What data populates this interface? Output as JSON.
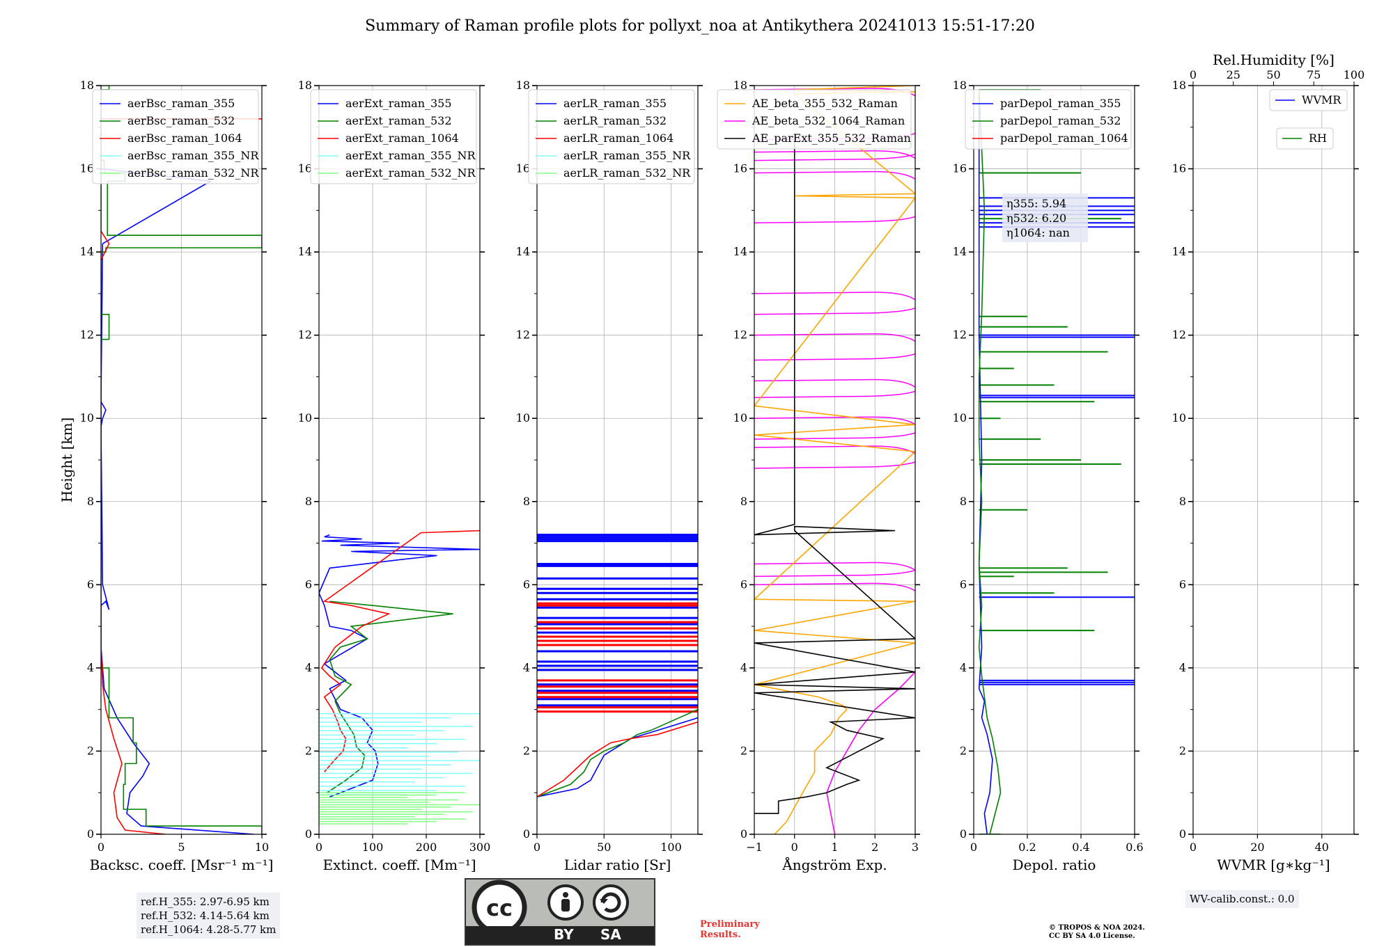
{
  "title": "Summary of Raman profile plots for pollyxt_noa at Antikythera 20241013 15:51-17:20",
  "colors": {
    "blue": "#0000ff",
    "green": "#008000",
    "red": "#ff0000",
    "cyan": "#7fffff",
    "lightgreen": "#80ff80",
    "orange": "#ffa500",
    "magenta": "#ff00ff",
    "black": "#000000",
    "grid": "#b0b0b0",
    "prelim": "#e8332e"
  },
  "notes": {
    "ref_h_355": "ref.H_355: 2.97-6.95 km",
    "ref_h_532": "ref.H_532: 4.14-5.64 km",
    "ref_h_1064": "ref.H_1064: 4.28-5.77 km",
    "wv_calib": "WV-calib.const.: 0.0",
    "eta": [
      "η355: 5.94",
      "η532: 6.20",
      "η1064: nan"
    ]
  },
  "license": {
    "cc": "cc",
    "by": "BY",
    "sa": "SA"
  },
  "preliminary": [
    "Preliminary",
    "Results."
  ],
  "copyright": [
    "© TROPOS & NOA 2024.",
    "CC BY SA 4.0 License."
  ],
  "chart_data": [
    {
      "id": "backscatter",
      "type": "line",
      "xlabel": "Backsc. coeff. [Msr⁻¹ m⁻¹]",
      "ylabel": "Height [km]",
      "xlim": [
        0,
        10
      ],
      "xticks": [
        0,
        5,
        10
      ],
      "ylim": [
        0,
        18
      ],
      "yticks": [
        0,
        2,
        4,
        6,
        8,
        10,
        12,
        14,
        16,
        18
      ],
      "grid": true,
      "legend_position": "top-left",
      "series": [
        {
          "name": "aerBsc_raman_355",
          "color": "#0000ff",
          "x": [
            9.5,
            2.5,
            1.6,
            1.8,
            2.6,
            3.0,
            2.0,
            1.0,
            0.2,
            0.0,
            0.0,
            0.0,
            0.3,
            0.5,
            0.1,
            0.0,
            0.1,
            0.3,
            0.0,
            0.1,
            6.8,
            0.0,
            0.0
          ],
          "y": [
            0.0,
            0.2,
            0.5,
            1.0,
            1.4,
            1.7,
            2.2,
            2.8,
            3.5,
            4.5,
            5.2,
            5.5,
            5.6,
            5.4,
            6.0,
            9.8,
            10.0,
            10.2,
            10.4,
            14.2,
            15.7,
            16.0,
            17.9
          ]
        },
        {
          "name": "aerBsc_raman_532",
          "color": "#008000",
          "x": [
            10,
            2.8,
            1.4,
            1.5,
            2.2,
            2.0,
            0.5,
            0.0,
            0.0,
            0.5,
            0.0,
            0.0,
            0.3,
            10,
            0.4,
            1.5,
            0.2,
            0.0,
            0.5,
            0.0
          ],
          "y": [
            0.0,
            0.2,
            0.6,
            1.2,
            1.7,
            2.2,
            2.8,
            4.0,
            11.5,
            11.9,
            12.5,
            13.6,
            14.0,
            14.1,
            14.4,
            15.7,
            15.9,
            16.2,
            17.9,
            18.0
          ],
          "style": "step"
        },
        {
          "name": "aerBsc_raman_1064",
          "color": "#ff0000",
          "x": [
            4.0,
            1.5,
            1.0,
            0.8,
            1.3,
            0.8,
            0.3,
            0.1,
            0.0,
            0.0,
            0.5,
            0.0,
            0.0,
            10
          ],
          "y": [
            0.0,
            0.1,
            0.4,
            1.0,
            1.7,
            2.3,
            3.0,
            3.6,
            4.5,
            13.8,
            14.2,
            14.5,
            17.2,
            17.2
          ]
        },
        {
          "name": "aerBsc_raman_355_NR",
          "color": "#7fffff",
          "x": [],
          "y": []
        },
        {
          "name": "aerBsc_raman_532_NR",
          "color": "#80ff80",
          "x": [],
          "y": []
        }
      ]
    },
    {
      "id": "extinction",
      "type": "line",
      "xlabel": "Extinct. coeff. [Mm⁻¹]",
      "xlim": [
        0,
        300
      ],
      "xticks": [
        0,
        100,
        200,
        300
      ],
      "ylim": [
        0,
        18
      ],
      "yticks": [
        0,
        2,
        4,
        6,
        8,
        10,
        12,
        14,
        16,
        18
      ],
      "grid": true,
      "legend_position": "top-left",
      "series": [
        {
          "name": "aerExt_raman_355",
          "color": "#0000ff",
          "x": [
            20,
            60,
            100,
            110,
            105,
            90,
            100,
            80,
            40,
            20,
            50,
            30,
            10,
            90,
            60,
            20,
            10,
            0,
            20,
            150,
            220,
            60,
            300,
            40,
            150,
            5,
            80,
            10,
            20
          ],
          "y": [
            0.9,
            1.1,
            1.3,
            1.7,
            2.0,
            2.2,
            2.5,
            2.8,
            3.0,
            3.5,
            3.7,
            3.9,
            4.1,
            4.7,
            4.9,
            5.0,
            5.5,
            5.8,
            6.4,
            6.6,
            6.7,
            6.8,
            6.85,
            6.95,
            7.0,
            7.05,
            7.1,
            7.15,
            7.2
          ]
        },
        {
          "name": "aerExt_raman_532",
          "color": "#008000",
          "x": [
            15,
            50,
            80,
            85,
            70,
            65,
            50,
            40,
            30,
            60,
            30,
            20,
            40,
            90,
            60,
            250,
            100,
            20
          ],
          "y": [
            1.0,
            1.3,
            1.6,
            1.9,
            2.1,
            2.4,
            2.7,
            2.9,
            3.2,
            3.6,
            3.8,
            4.2,
            4.5,
            4.7,
            5.0,
            5.3,
            5.5,
            5.6
          ]
        },
        {
          "name": "aerExt_raman_1064",
          "color": "#ff0000",
          "x": [
            10,
            30,
            45,
            50,
            40,
            35,
            25,
            10,
            40,
            20,
            5,
            30,
            60,
            80,
            130,
            60,
            10,
            190,
            300
          ],
          "y": [
            1.5,
            1.8,
            2.0,
            2.3,
            2.5,
            2.7,
            3.0,
            3.3,
            3.6,
            3.8,
            4.0,
            4.5,
            4.8,
            5.0,
            5.3,
            5.5,
            5.6,
            7.25,
            7.3
          ]
        },
        {
          "name": "aerExt_raman_355_NR",
          "color": "#7fffff",
          "style": "hbars",
          "y_start": 0.95,
          "y_end": 2.9,
          "count": 20,
          "x_max": 300
        },
        {
          "name": "aerExt_raman_532_NR",
          "color": "#80ff80",
          "style": "hbars",
          "y_start": 0.25,
          "y_end": 1.0,
          "count": 14,
          "x_max": 300
        }
      ]
    },
    {
      "id": "lidar_ratio",
      "type": "line",
      "xlabel": "Lidar ratio [Sr]",
      "xlim": [
        0,
        120
      ],
      "xticks": [
        0,
        50,
        100
      ],
      "ylim": [
        0,
        18
      ],
      "yticks": [
        0,
        2,
        4,
        6,
        8,
        10,
        12,
        14,
        16,
        18
      ],
      "grid": true,
      "legend_position": "top-left",
      "series": [
        {
          "name": "aerLR_raman_355",
          "color": "#0000ff",
          "x": [
            0,
            30,
            40,
            45,
            50,
            60,
            70,
            80,
            100,
            120
          ],
          "y": [
            0.9,
            1.1,
            1.3,
            1.6,
            1.9,
            2.1,
            2.3,
            2.4,
            2.6,
            2.8
          ]
        },
        {
          "name": "aerLR_raman_532",
          "color": "#008000",
          "x": [
            0,
            25,
            35,
            40,
            50,
            65,
            75,
            85,
            120
          ],
          "y": [
            0.9,
            1.2,
            1.5,
            1.8,
            2.0,
            2.2,
            2.4,
            2.5,
            3.0
          ]
        },
        {
          "name": "aerLR_raman_1064",
          "color": "#ff0000",
          "x": [
            0,
            20,
            30,
            40,
            55,
            70,
            90,
            100,
            120
          ],
          "y": [
            0.9,
            1.3,
            1.6,
            1.9,
            2.2,
            2.3,
            2.4,
            2.5,
            2.7
          ]
        },
        {
          "name": "aerLR_raman_355_NR",
          "color": "#7fffff",
          "x": [],
          "y": []
        },
        {
          "name": "aerLR_raman_532_NR",
          "color": "#80ff80",
          "x": [],
          "y": []
        }
      ],
      "hlines_355": [
        3.1,
        3.25,
        3.45,
        3.6,
        3.95,
        4.05,
        4.15,
        4.4,
        4.65,
        4.85,
        5.05,
        5.2,
        5.45,
        5.65,
        5.8,
        5.9,
        6.15,
        6.45,
        6.5,
        7.05,
        7.1,
        7.15,
        7.2
      ],
      "hlines_1064": [
        2.95,
        3.05,
        3.3,
        3.4,
        3.55,
        3.7,
        4.55,
        4.65,
        4.75,
        4.95,
        5.1,
        5.5,
        5.55
      ]
    },
    {
      "id": "angstrom",
      "type": "line",
      "xlabel": "Ångström Exp.",
      "xlim": [
        -1,
        3
      ],
      "xticks": [
        -1,
        0,
        1,
        2,
        3
      ],
      "ylim": [
        0,
        18
      ],
      "yticks": [
        0,
        2,
        4,
        6,
        8,
        10,
        12,
        14,
        16,
        18
      ],
      "grid": true,
      "legend_position": "top-left",
      "series": [
        {
          "name": "AE_beta_355_532_Raman",
          "color": "#ffa500",
          "x": [
            -0.5,
            -0.2,
            0.2,
            0.5,
            0.5,
            0.9,
            1.1,
            1.3,
            1.2,
            0.6,
            -1,
            3.0,
            -1,
            3,
            -1,
            3,
            -1,
            3,
            -1,
            3,
            0.0,
            3,
            0.0,
            3,
            0.0,
            3,
            2.5,
            3
          ],
          "y": [
            0.0,
            0.3,
            1.0,
            1.5,
            2.0,
            2.4,
            2.8,
            3.0,
            3.1,
            3.3,
            3.6,
            4.6,
            4.9,
            5.6,
            5.65,
            9.2,
            9.6,
            9.85,
            10.3,
            15.3,
            15.35,
            15.4,
            17.8,
            17.85,
            17.9,
            18.0,
            18.0,
            18.0
          ]
        },
        {
          "name": "AE_beta_532_1064_Raman",
          "color": "#ff00ff",
          "x": [
            1.0,
            0.9,
            0.8,
            1.0,
            1.3,
            1.6,
            2.0,
            2.6,
            3.0
          ],
          "y": [
            0.0,
            0.5,
            1.0,
            1.5,
            2.0,
            2.5,
            3.0,
            3.5,
            3.9
          ]
        },
        {
          "name": "AE_parExt_355_532_Raman",
          "color": "#000000",
          "x": [
            -1,
            -0.4,
            -0.4,
            0.3,
            0.8,
            1.3,
            1.6,
            0.8,
            1.2,
            1.8,
            2.2,
            1.3,
            0.9,
            3,
            -1,
            3,
            -1,
            3,
            -1,
            3,
            0.0,
            0.0,
            2.5,
            -1,
            0.0,
            0.0
          ],
          "y": [
            0.5,
            0.5,
            0.8,
            0.9,
            1.0,
            1.2,
            1.3,
            1.6,
            1.8,
            2.1,
            2.3,
            2.5,
            2.7,
            2.8,
            3.4,
            3.5,
            3.6,
            3.9,
            4.6,
            4.7,
            7.3,
            7.4,
            7.3,
            7.2,
            7.45,
            16.8
          ]
        }
      ],
      "magenta_arcs_y": [
        6.0,
        6.2,
        6.5,
        8.8,
        9.3,
        9.5,
        10.0,
        10.5,
        10.9,
        11.4,
        12.0,
        12.5,
        13.0,
        14.7,
        15.9,
        16.2,
        16.4,
        16.7,
        17.9
      ]
    },
    {
      "id": "depol",
      "type": "line",
      "xlabel": "Depol. ratio",
      "xlim": [
        0,
        0.6
      ],
      "xticks": [
        0.0,
        0.2,
        0.4,
        0.6
      ],
      "ylim": [
        0,
        18
      ],
      "yticks": [
        0,
        2,
        4,
        6,
        8,
        10,
        12,
        14,
        16,
        18
      ],
      "grid": true,
      "legend_position": "top-left",
      "series": [
        {
          "name": "parDepol_raman_355",
          "color": "#0000ff",
          "x": [
            0.05,
            0.04,
            0.06,
            0.07,
            0.05,
            0.03,
            0.04,
            0.02,
            0.03,
            0.02,
            0.03,
            0.02,
            0.02
          ],
          "y": [
            0.0,
            0.5,
            1.0,
            1.8,
            2.4,
            2.8,
            3.2,
            3.5,
            4.5,
            6.5,
            9.0,
            12.0,
            17.8
          ]
        },
        {
          "name": "parDepol_raman_532",
          "color": "#008000",
          "x": [
            0.06,
            0.08,
            0.1,
            0.09,
            0.07,
            0.05,
            0.04,
            0.03,
            0.02,
            0.03,
            0.02,
            0.03,
            0.02,
            0.02,
            0.03,
            0.04,
            0.02
          ],
          "y": [
            0.0,
            0.5,
            1.0,
            1.6,
            2.3,
            2.8,
            3.3,
            3.8,
            4.5,
            5.5,
            6.5,
            8.0,
            9.5,
            11.0,
            12.5,
            15.0,
            17.9
          ]
        },
        {
          "name": "parDepol_raman_1064",
          "color": "#ff0000",
          "x": [],
          "y": []
        }
      ],
      "spikes_355": [
        3.6,
        3.65,
        3.7,
        5.7,
        10.5,
        10.55,
        11.95,
        12.0,
        14.6,
        14.7,
        14.9,
        15.0,
        15.1,
        15.3
      ],
      "spikes_532": [
        0.0,
        4.9,
        5.8,
        6.2,
        6.3,
        6.4,
        7.8,
        8.9,
        9.0,
        9.5,
        10.0,
        10.4,
        10.8,
        11.2,
        11.6,
        12.2,
        12.45,
        14.8,
        15.9,
        17.9
      ]
    },
    {
      "id": "wvmr",
      "type": "line",
      "xlabel": "WVMR [g∗kg⁻¹]",
      "x2label": "Rel.Humidity [%]",
      "xlim": [
        0,
        50
      ],
      "xticks": [
        0,
        20,
        40
      ],
      "x2lim": [
        0,
        100
      ],
      "x2ticks": [
        0,
        25,
        50,
        75,
        100
      ],
      "ylim": [
        0,
        18
      ],
      "yticks": [
        0,
        2,
        4,
        6,
        8,
        10,
        12,
        14,
        16,
        18
      ],
      "grid": true,
      "legend_position": "top-right",
      "series": [
        {
          "name": "WVMR",
          "color": "#0000ff",
          "x": [],
          "y": []
        },
        {
          "name": "RH",
          "color": "#008000",
          "x": [],
          "y": []
        }
      ]
    }
  ]
}
